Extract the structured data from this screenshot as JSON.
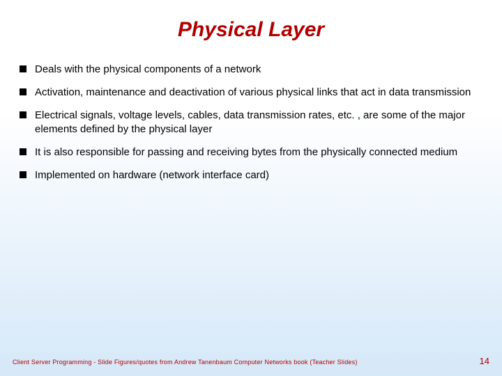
{
  "title": {
    "text": "Physical Layer",
    "color": "#b00000",
    "fontsize": 30
  },
  "bullets": {
    "items": [
      "Deals with the physical components of a network",
      "Activation, maintenance and deactivation of various physical links that act in data transmission",
      "Electrical signals, voltage levels, cables, data transmission rates, etc. , are some of the major elements defined by the physical layer",
      "It is also responsible for passing and receiving bytes from the physically connected medium",
      "Implemented on hardware (network interface card)"
    ],
    "marker_color": "#000000",
    "text_color": "#000000",
    "fontsize": 15
  },
  "footer": {
    "left_text": "Client Server Programming     - Slide Figures/quotes from Andrew Tanenbaum Computer Networks book (Teacher Slides)",
    "left_color": "#b00000",
    "left_fontsize": 9,
    "page_number": "14",
    "page_color": "#b00000",
    "page_fontsize": 13
  },
  "background": {
    "top_color": "#ffffff",
    "bottom_color": "#d5e8f8"
  }
}
